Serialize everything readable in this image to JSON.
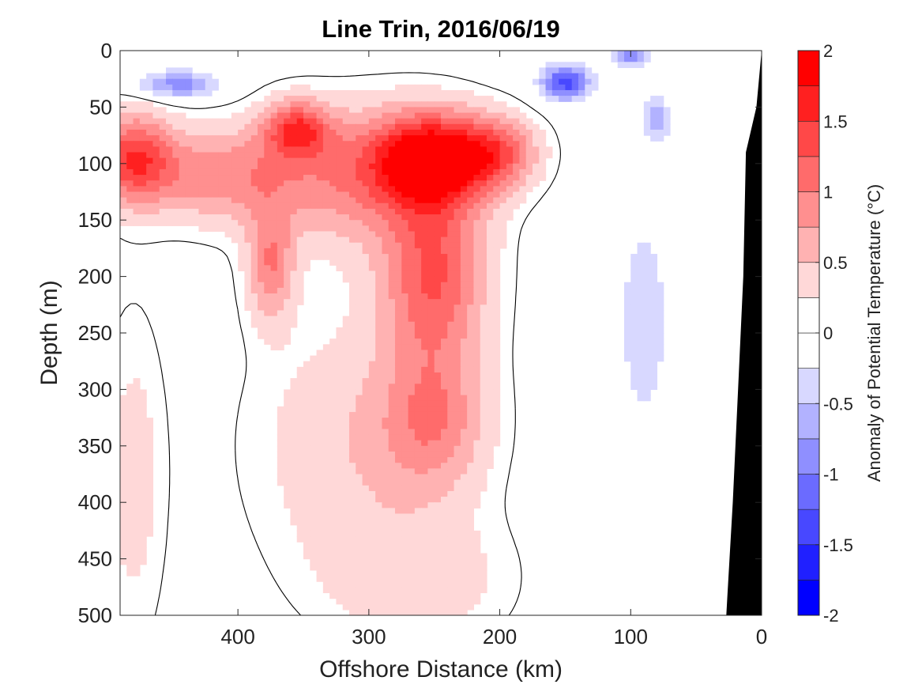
{
  "chart_data": {
    "type": "contour",
    "title": "Line Trin, 2016/06/19",
    "xlabel": "Offshore Distance (km)",
    "ylabel": "Depth (m)",
    "xlim": [
      490,
      0
    ],
    "ylim": [
      0,
      500
    ],
    "x_direction": "reversed",
    "y_direction": "reversed",
    "x_ticks": [
      400,
      300,
      200,
      100,
      0
    ],
    "y_ticks": [
      0,
      50,
      100,
      150,
      200,
      250,
      300,
      350,
      400,
      450,
      500
    ],
    "colorbar": {
      "label": "Anomaly of Potential Temperature (°C)",
      "limits": [
        -2,
        2
      ],
      "tick_values": [
        2,
        1.5,
        1,
        0.5,
        0,
        -0.5,
        -1,
        -1.5,
        -2
      ],
      "tick_labels": [
        "2",
        "1.5",
        "1",
        "0.5",
        "0",
        "-0.5",
        "-1",
        "-1.5",
        "-2"
      ],
      "levels": [
        -2,
        -1.75,
        -1.5,
        -1.25,
        -1,
        -0.75,
        -0.5,
        -0.25,
        0,
        0.25,
        0.5,
        0.75,
        1,
        1.25,
        1.5,
        1.75,
        2
      ],
      "colors": [
        "#0000ff",
        "#2020ff",
        "#4848ff",
        "#6b6bff",
        "#8f8fff",
        "#b2b2ff",
        "#d8d8ff",
        "#ffffff",
        "#ffffff",
        "#ffd8d8",
        "#ffb2b2",
        "#ff8f8f",
        "#ff6b6b",
        "#ff4848",
        "#ff2020",
        "#ff0000"
      ]
    },
    "zero_contour_color": "#000000",
    "bathymetry_color": "#000000",
    "bathymetry": [
      {
        "x": 0,
        "depth": 0
      },
      {
        "x": 4,
        "depth": 50
      },
      {
        "x": 12,
        "depth": 90
      },
      {
        "x": 14,
        "depth": 200
      },
      {
        "x": 18,
        "depth": 300
      },
      {
        "x": 22,
        "depth": 400
      },
      {
        "x": 26,
        "depth": 480
      },
      {
        "x": 27,
        "depth": 500
      }
    ],
    "anomaly_features": [
      {
        "x": 250,
        "depth": 95,
        "value": 1.75,
        "sx": 45,
        "sy": 40
      },
      {
        "x": 250,
        "depth": 200,
        "value": 1.2,
        "sx": 40,
        "sy": 80
      },
      {
        "x": 250,
        "depth": 330,
        "value": 0.75,
        "sx": 40,
        "sy": 60
      },
      {
        "x": 310,
        "depth": 110,
        "value": 0.9,
        "sx": 80,
        "sy": 60
      },
      {
        "x": 480,
        "depth": 95,
        "value": 1.3,
        "sx": 30,
        "sy": 40
      },
      {
        "x": 420,
        "depth": 110,
        "value": 0.8,
        "sx": 60,
        "sy": 40
      },
      {
        "x": 375,
        "depth": 190,
        "value": 0.9,
        "sx": 18,
        "sy": 50
      },
      {
        "x": 355,
        "depth": 70,
        "value": 1.2,
        "sx": 25,
        "sy": 25
      },
      {
        "x": 200,
        "depth": 90,
        "value": 0.9,
        "sx": 30,
        "sy": 30
      },
      {
        "x": 310,
        "depth": 350,
        "value": 0.45,
        "sx": 80,
        "sy": 120
      },
      {
        "x": 260,
        "depth": 470,
        "value": 0.35,
        "sx": 70,
        "sy": 60
      },
      {
        "x": 480,
        "depth": 380,
        "value": 0.35,
        "sx": 25,
        "sy": 150
      },
      {
        "x": 445,
        "depth": 30,
        "value": -0.9,
        "sx": 30,
        "sy": 12
      },
      {
        "x": 150,
        "depth": 28,
        "value": -1.4,
        "sx": 18,
        "sy": 15
      },
      {
        "x": 100,
        "depth": 5,
        "value": -1.0,
        "sx": 12,
        "sy": 8
      },
      {
        "x": 90,
        "depth": 240,
        "value": -0.35,
        "sx": 25,
        "sy": 120
      },
      {
        "x": 80,
        "depth": 60,
        "value": -0.6,
        "sx": 10,
        "sy": 20
      }
    ]
  }
}
